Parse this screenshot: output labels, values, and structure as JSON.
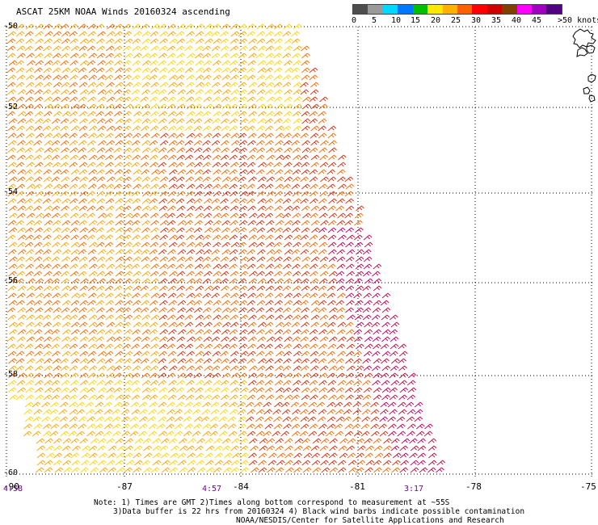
{
  "title": "ASCAT 25KM NOAA Winds 20160324 ascending",
  "colorbar": {
    "colors": [
      "#4d4d4d",
      "#9a9a9a",
      "#00d8ff",
      "#0078ff",
      "#00c000",
      "#ffe800",
      "#ffb000",
      "#ff6000",
      "#ff0000",
      "#d00000",
      "#804000",
      "#ff00ff",
      "#a000c0",
      "#500080"
    ],
    "labels": [
      "0",
      "5",
      "10",
      "15",
      "20",
      "25",
      "30",
      "35",
      "40",
      "45",
      ">50 knots"
    ]
  },
  "latitudes": [
    "-50",
    "-52",
    "-54",
    "-56",
    "-58",
    "-60"
  ],
  "longitudes": [
    "-90",
    "-87",
    "-84",
    "-81",
    "-78",
    "-75"
  ],
  "times": [
    "4:58",
    "4:57",
    "3:17"
  ],
  "notes": [
    "Note: 1) Times are GMT 2)Times along bottom correspond to measurement at ~55S",
    "3)Data buffer is 22 hrs from 20160324 4) Black wind barbs indicate possible contamination",
    "NOAA/NESDIS/Center for Satellite Applications and Research"
  ],
  "barb_colors": [
    "#ffd400",
    "#ffa500",
    "#ff6a00",
    "#e03010",
    "#c01040",
    "#d00060"
  ]
}
